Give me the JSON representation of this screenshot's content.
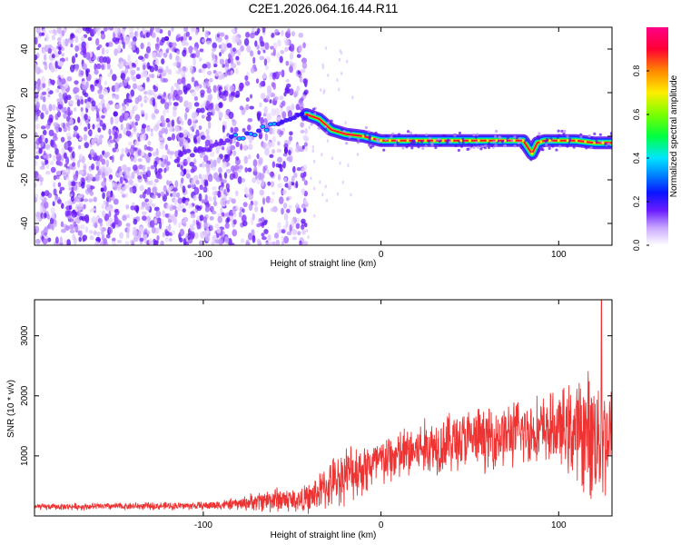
{
  "title": "C2E1.2026.064.16.44.R11",
  "chart_data": [
    {
      "type": "heatmap",
      "name": "spectrogram",
      "xlabel": "Height of straight line (km)",
      "ylabel": "Frequency (Hz)",
      "xlim": [
        -195,
        130
      ],
      "ylim": [
        -50,
        50
      ],
      "xticks": [
        -100,
        0,
        100
      ],
      "yticks": [
        -40,
        -20,
        0,
        20,
        40
      ],
      "colorbar": {
        "label": "Normalized spectral amplitude",
        "range": [
          0.0,
          1.0
        ],
        "ticks": [
          0.0,
          0.2,
          0.4,
          0.6,
          0.8
        ],
        "colors": [
          "#ffffff",
          "#9b59ff",
          "#3300ff",
          "#0066ff",
          "#00e5ff",
          "#00ff33",
          "#b6ff00",
          "#ffee00",
          "#ff8800",
          "#ff0033",
          "#ff0080"
        ]
      },
      "signal_trace": {
        "x": [
          -115,
          -100,
          -90,
          -80,
          -70,
          -60,
          -50,
          -42,
          -35,
          -28,
          -20,
          -10,
          0,
          20,
          40,
          60,
          80,
          85,
          88,
          92,
          100,
          110,
          120,
          130
        ],
        "y": [
          -10,
          -6,
          -3,
          0,
          2,
          5,
          9,
          10,
          8,
          3,
          1,
          0,
          -2,
          -2,
          -2,
          -2,
          -2,
          -8,
          -3,
          -2,
          -2,
          -2,
          -3,
          -3
        ]
      },
      "noise_region_x": [
        -195,
        -42
      ]
    },
    {
      "type": "line",
      "name": "snr",
      "xlabel": "Height of straight line (km)",
      "ylabel": "SNR (10 * v/v)",
      "xlim": [
        -195,
        130
      ],
      "ylim": [
        0,
        3600
      ],
      "xticks": [
        -100,
        0,
        100
      ],
      "yticks": [
        1000,
        2000,
        3000
      ],
      "series": [
        {
          "name": "SNR",
          "color": "#ee3333",
          "envelope": {
            "x": [
              -195,
              -150,
              -100,
              -80,
              -60,
              -45,
              -40,
              -30,
              -20,
              -10,
              0,
              20,
              40,
              60,
              80,
              100,
              110,
              120,
              130
            ],
            "mean": [
              150,
              160,
              170,
              200,
              280,
              260,
              300,
              500,
              700,
              800,
              900,
              1100,
              1250,
              1300,
              1400,
              1450,
              1400,
              1350,
              1300
            ],
            "amp": [
              60,
              70,
              80,
              120,
              260,
              240,
              300,
              450,
              550,
              550,
              500,
              550,
              600,
              600,
              650,
              700,
              1000,
              1300,
              1100
            ]
          },
          "peak": {
            "x": 124,
            "y": 3600
          }
        }
      ]
    }
  ]
}
